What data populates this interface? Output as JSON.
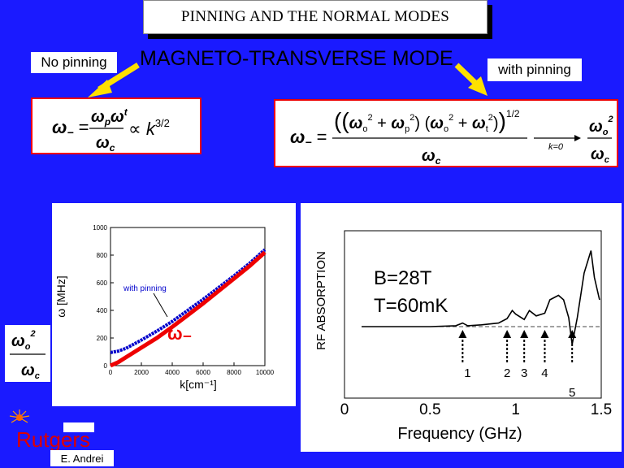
{
  "slide": {
    "title": "PINNING AND THE NORMAL MODES",
    "mode_title": "MAGNETO-TRANSVERSE MODE",
    "left_label": "No pinning",
    "right_label": "with pinning",
    "author": "E. Andrei",
    "logo_text": "Rutgers",
    "colors": {
      "background": "#1a1aff",
      "arrow": "#ffe000",
      "frame": "#e00000",
      "curve_pinning": "#0000cc",
      "curve_no_pinning": "#ee0000"
    }
  },
  "formula_left": {
    "lhs": "ω₋ =",
    "numerator": "ω_p ω_t",
    "denominator": "ω_c",
    "relation": "∝ k^{3/2}"
  },
  "formula_right": {
    "lhs": "ω₋ =",
    "numerator": "((ω_o² + ω_p²)(ω_o² + ω_t²))^{1/2}",
    "denominator": "ω_c",
    "limit": "k=0",
    "result_num": "ω_o²",
    "result_den": "ω_c"
  },
  "side_formula": {
    "numerator": "ω_o²",
    "denominator": "ω_c"
  },
  "chart_data": [
    {
      "type": "line",
      "xlabel": "k[cm⁻¹]",
      "ylabel": "ω [MHz]",
      "xlim": [
        0,
        10000
      ],
      "ylim": [
        0,
        1000
      ],
      "x_ticks": [
        "0",
        "2000",
        "4000",
        "6000",
        "8000",
        "10000"
      ],
      "y_ticks": [
        "0",
        "200",
        "400",
        "600",
        "800",
        "1000"
      ],
      "annotations": [
        "with pinning",
        "ω₋"
      ],
      "series": [
        {
          "name": "with pinning",
          "color": "#0000cc",
          "x": [
            0,
            500,
            1000,
            2000,
            3000,
            4000,
            5000,
            6000,
            7000,
            8000,
            9000,
            10000
          ],
          "y": [
            95,
            105,
            125,
            185,
            250,
            320,
            400,
            480,
            565,
            650,
            740,
            840
          ]
        },
        {
          "name": "ω₋",
          "color": "#ee0000",
          "x": [
            0,
            500,
            1000,
            2000,
            3000,
            4000,
            5000,
            6000,
            7000,
            8000,
            9000,
            10000
          ],
          "y": [
            0,
            25,
            60,
            130,
            200,
            280,
            365,
            450,
            540,
            630,
            720,
            820
          ]
        }
      ]
    },
    {
      "type": "line",
      "xlabel": "Frequency  (GHz)",
      "ylabel": "RF ABSORPTION",
      "xlim": [
        0,
        1.5
      ],
      "x_ticks": [
        "0",
        "0.5",
        "1",
        "1.5"
      ],
      "annotations": [
        "B=28T",
        "T=60mK"
      ],
      "peaks": [
        "1",
        "2",
        "3",
        "4",
        "5"
      ],
      "peak_positions_ghz": [
        0.69,
        0.95,
        1.05,
        1.17,
        1.33
      ],
      "series": [
        {
          "name": "",
          "color": "#000000",
          "x": [
            0.1,
            0.3,
            0.5,
            0.65,
            0.69,
            0.72,
            0.8,
            0.9,
            0.95,
            0.98,
            1.0,
            1.05,
            1.08,
            1.12,
            1.17,
            1.2,
            1.25,
            1.28,
            1.31,
            1.33,
            1.36,
            1.4,
            1.44,
            1.46,
            1.49
          ],
          "y": [
            0.0,
            0.0,
            0.0,
            0.01,
            0.04,
            0.01,
            0.02,
            0.04,
            0.09,
            0.18,
            0.14,
            0.08,
            0.18,
            0.12,
            0.15,
            0.3,
            0.35,
            0.3,
            0.1,
            -0.2,
            0.1,
            0.6,
            0.85,
            0.55,
            0.3
          ]
        }
      ]
    }
  ]
}
